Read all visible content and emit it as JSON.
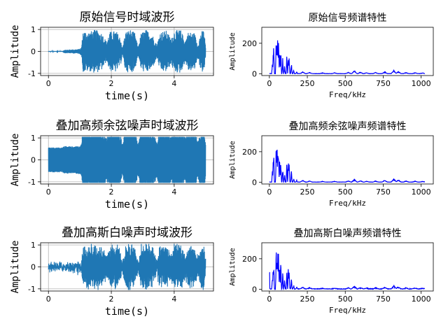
{
  "chart_data": [
    {
      "panel": "time-1",
      "type": "line",
      "title": "原始信号时域波形",
      "xlabel": "time(s)",
      "ylabel": "Amplitude",
      "xlim": [
        -0.25,
        5.25
      ],
      "ylim": [
        -1.1,
        1.1
      ],
      "xticks": [
        0,
        2,
        4
      ],
      "yticks": [
        -1,
        0,
        1
      ],
      "grid": true,
      "color": "#1f77b4",
      "noise": "none",
      "envelope": [
        [
          0.0,
          0.02
        ],
        [
          0.45,
          0.02
        ],
        [
          0.5,
          0.08
        ],
        [
          0.9,
          0.1
        ],
        [
          1.0,
          0.12
        ],
        [
          1.05,
          0.2
        ],
        [
          1.1,
          0.95
        ],
        [
          1.3,
          0.9
        ],
        [
          1.5,
          1.0
        ],
        [
          1.7,
          0.85
        ],
        [
          1.85,
          0.45
        ],
        [
          1.95,
          0.9
        ],
        [
          2.15,
          0.95
        ],
        [
          2.3,
          0.6
        ],
        [
          2.35,
          0.15
        ],
        [
          2.45,
          0.9
        ],
        [
          2.6,
          1.0
        ],
        [
          2.75,
          0.85
        ],
        [
          2.85,
          0.2
        ],
        [
          2.95,
          0.85
        ],
        [
          3.1,
          1.0
        ],
        [
          3.3,
          0.8
        ],
        [
          3.45,
          0.3
        ],
        [
          3.55,
          0.9
        ],
        [
          3.75,
          0.95
        ],
        [
          3.9,
          0.6
        ],
        [
          4.0,
          0.95
        ],
        [
          4.2,
          1.0
        ],
        [
          4.35,
          0.5
        ],
        [
          4.45,
          0.9
        ],
        [
          4.65,
          0.85
        ],
        [
          4.75,
          0.3
        ],
        [
          4.85,
          0.9
        ],
        [
          4.95,
          1.0
        ],
        [
          5.0,
          0.2
        ]
      ]
    },
    {
      "panel": "freq-1",
      "type": "line",
      "title": "原始信号频谱特性",
      "xlabel": "Freq/kHz",
      "ylabel": "Amplitude",
      "xlim": [
        -50,
        1080
      ],
      "ylim": [
        -12,
        305
      ],
      "xticks": [
        0,
        250,
        500,
        750,
        1000
      ],
      "yticks": [
        0,
        200
      ],
      "color": "#0000ff",
      "peaks": [
        [
          20,
          80
        ],
        [
          25,
          160
        ],
        [
          28,
          220
        ],
        [
          45,
          260
        ],
        [
          50,
          285
        ],
        [
          55,
          275
        ],
        [
          60,
          250
        ],
        [
          68,
          215
        ],
        [
          75,
          180
        ],
        [
          88,
          110
        ],
        [
          100,
          60
        ],
        [
          115,
          140
        ],
        [
          125,
          150
        ],
        [
          130,
          135
        ],
        [
          145,
          80
        ],
        [
          160,
          30
        ],
        [
          180,
          15
        ],
        [
          220,
          12
        ],
        [
          265,
          8
        ],
        [
          350,
          5
        ],
        [
          430,
          6
        ],
        [
          520,
          8
        ],
        [
          560,
          20
        ],
        [
          600,
          10
        ],
        [
          640,
          6
        ],
        [
          700,
          8
        ],
        [
          760,
          12
        ],
        [
          820,
          22
        ],
        [
          850,
          15
        ],
        [
          900,
          8
        ],
        [
          960,
          6
        ],
        [
          1010,
          5
        ]
      ],
      "extra_peak": null
    },
    {
      "panel": "time-2",
      "type": "line",
      "title": "叠加高频余弦噪声时域波形",
      "xlabel": "time(s)",
      "ylabel": "Amplitude",
      "xlim": [
        -0.25,
        5.25
      ],
      "ylim": [
        -1.1,
        1.1
      ],
      "xticks": [
        0,
        2,
        4
      ],
      "yticks": [
        -1,
        0,
        1
      ],
      "grid": true,
      "color": "#1f77b4",
      "noise": "cosine",
      "noise_level": 0.55,
      "envelope": [
        [
          0.0,
          0.02
        ],
        [
          0.45,
          0.02
        ],
        [
          0.5,
          0.08
        ],
        [
          0.9,
          0.1
        ],
        [
          1.0,
          0.12
        ],
        [
          1.05,
          0.2
        ],
        [
          1.1,
          0.95
        ],
        [
          1.3,
          0.9
        ],
        [
          1.5,
          1.0
        ],
        [
          1.7,
          0.85
        ],
        [
          1.85,
          0.45
        ],
        [
          1.95,
          0.9
        ],
        [
          2.15,
          0.95
        ],
        [
          2.3,
          0.6
        ],
        [
          2.35,
          0.15
        ],
        [
          2.45,
          0.9
        ],
        [
          2.6,
          1.0
        ],
        [
          2.75,
          0.85
        ],
        [
          2.85,
          0.2
        ],
        [
          2.95,
          0.85
        ],
        [
          3.1,
          1.0
        ],
        [
          3.3,
          0.8
        ],
        [
          3.45,
          0.3
        ],
        [
          3.55,
          0.9
        ],
        [
          3.75,
          0.95
        ],
        [
          3.9,
          0.6
        ],
        [
          4.0,
          0.95
        ],
        [
          4.2,
          1.0
        ],
        [
          4.35,
          0.5
        ],
        [
          4.45,
          0.9
        ],
        [
          4.65,
          0.85
        ],
        [
          4.75,
          0.3
        ],
        [
          4.85,
          0.9
        ],
        [
          4.95,
          1.0
        ],
        [
          5.0,
          0.2
        ]
      ]
    },
    {
      "panel": "freq-2",
      "type": "line",
      "title": "叠加高频余弦噪声频谱特性",
      "xlabel": "Freq/kHz",
      "ylabel": "Amplitude",
      "xlim": [
        -50,
        1080
      ],
      "ylim": [
        -12,
        305
      ],
      "xticks": [
        0,
        250,
        500,
        750,
        1000
      ],
      "yticks": [
        0,
        200
      ],
      "color": "#0000ff",
      "peaks": [
        [
          20,
          80
        ],
        [
          25,
          160
        ],
        [
          28,
          220
        ],
        [
          45,
          260
        ],
        [
          50,
          285
        ],
        [
          55,
          275
        ],
        [
          60,
          250
        ],
        [
          68,
          215
        ],
        [
          75,
          180
        ],
        [
          88,
          110
        ],
        [
          100,
          60
        ],
        [
          115,
          140
        ],
        [
          125,
          150
        ],
        [
          130,
          135
        ],
        [
          145,
          80
        ],
        [
          160,
          30
        ],
        [
          180,
          15
        ],
        [
          220,
          12
        ],
        [
          265,
          8
        ],
        [
          350,
          5
        ],
        [
          430,
          6
        ],
        [
          520,
          8
        ],
        [
          560,
          20
        ],
        [
          600,
          10
        ],
        [
          640,
          6
        ],
        [
          700,
          8
        ],
        [
          760,
          12
        ],
        [
          820,
          22
        ],
        [
          850,
          15
        ],
        [
          900,
          8
        ],
        [
          960,
          6
        ],
        [
          1010,
          5
        ]
      ],
      "extra_peak": null
    },
    {
      "panel": "time-3",
      "type": "line",
      "title": "叠加高斯白噪声时域波形",
      "xlabel": "time(s)",
      "ylabel": "Amplitude",
      "xlim": [
        -0.25,
        5.25
      ],
      "ylim": [
        -1.1,
        1.1
      ],
      "xticks": [
        0,
        2,
        4
      ],
      "yticks": [
        -1,
        0,
        1
      ],
      "grid": true,
      "color": "#1f77b4",
      "noise": "gaussian",
      "noise_level": 0.12,
      "envelope": [
        [
          0.0,
          0.02
        ],
        [
          0.45,
          0.02
        ],
        [
          0.5,
          0.08
        ],
        [
          0.9,
          0.1
        ],
        [
          1.0,
          0.12
        ],
        [
          1.05,
          0.2
        ],
        [
          1.1,
          0.95
        ],
        [
          1.3,
          0.9
        ],
        [
          1.5,
          1.0
        ],
        [
          1.7,
          0.85
        ],
        [
          1.85,
          0.45
        ],
        [
          1.95,
          0.9
        ],
        [
          2.15,
          0.95
        ],
        [
          2.3,
          0.6
        ],
        [
          2.35,
          0.15
        ],
        [
          2.45,
          0.9
        ],
        [
          2.6,
          1.0
        ],
        [
          2.75,
          0.85
        ],
        [
          2.85,
          0.2
        ],
        [
          2.95,
          0.85
        ],
        [
          3.1,
          1.0
        ],
        [
          3.3,
          0.8
        ],
        [
          3.45,
          0.3
        ],
        [
          3.55,
          0.9
        ],
        [
          3.75,
          0.95
        ],
        [
          3.9,
          0.6
        ],
        [
          4.0,
          0.95
        ],
        [
          4.2,
          1.0
        ],
        [
          4.35,
          0.5
        ],
        [
          4.45,
          0.9
        ],
        [
          4.65,
          0.85
        ],
        [
          4.75,
          0.3
        ],
        [
          4.85,
          0.9
        ],
        [
          4.95,
          1.0
        ],
        [
          5.0,
          0.2
        ]
      ]
    },
    {
      "panel": "freq-3",
      "type": "line",
      "title": "叠加高斯白噪声频谱特性",
      "xlabel": "Freq/kHz",
      "ylabel": "Amplitude",
      "xlim": [
        -50,
        1080
      ],
      "ylim": [
        -12,
        305
      ],
      "xticks": [
        0,
        250,
        500,
        750,
        1000
      ],
      "yticks": [
        0,
        200
      ],
      "color": "#0000ff",
      "peaks": [
        [
          20,
          80
        ],
        [
          25,
          160
        ],
        [
          28,
          220
        ],
        [
          45,
          260
        ],
        [
          50,
          285
        ],
        [
          55,
          275
        ],
        [
          60,
          250
        ],
        [
          68,
          215
        ],
        [
          75,
          180
        ],
        [
          88,
          110
        ],
        [
          100,
          60
        ],
        [
          115,
          140
        ],
        [
          125,
          150
        ],
        [
          130,
          135
        ],
        [
          145,
          80
        ],
        [
          160,
          30
        ],
        [
          180,
          15
        ],
        [
          220,
          12
        ],
        [
          265,
          8
        ],
        [
          350,
          5
        ],
        [
          430,
          6
        ],
        [
          520,
          8
        ],
        [
          560,
          20
        ],
        [
          600,
          10
        ],
        [
          640,
          6
        ],
        [
          700,
          8
        ],
        [
          760,
          12
        ],
        [
          820,
          22
        ],
        [
          850,
          15
        ],
        [
          900,
          8
        ],
        [
          960,
          6
        ],
        [
          1010,
          5
        ]
      ],
      "extra_peak": [
        0,
        110
      ],
      "noise_floor": 4
    }
  ]
}
